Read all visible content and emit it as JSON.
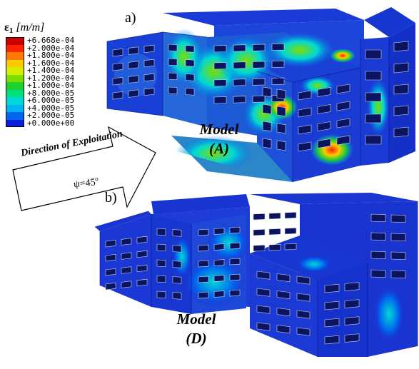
{
  "legend": {
    "symbol": "ε",
    "subscript": "1",
    "unit": "[m/m]",
    "entries": [
      {
        "label": "+6.668e-04",
        "color": "#cc0000"
      },
      {
        "label": "+2.000e-04",
        "color": "#ff2200"
      },
      {
        "label": "+1.800e-04",
        "color": "#ff7a00"
      },
      {
        "label": "+1.600e-04",
        "color": "#ffc800"
      },
      {
        "label": "+1.400e-04",
        "color": "#d8ee00"
      },
      {
        "label": "+1.200e-04",
        "color": "#7dde00"
      },
      {
        "label": "+1.000e-04",
        "color": "#1fd12e"
      },
      {
        "label": "+8.000e-05",
        "color": "#00e07d"
      },
      {
        "label": "+6.000e-05",
        "color": "#00d8d6"
      },
      {
        "label": "+4.000e-05",
        "color": "#00b4f4"
      },
      {
        "label": "+2.000e-05",
        "color": "#0066ee"
      },
      {
        "label": "+0.000e+00",
        "color": "#0a1ee0"
      }
    ]
  },
  "panels": {
    "a_label": "a)",
    "b_label": "b)"
  },
  "models": {
    "a_line1": "Model",
    "a_line2": "(A)",
    "d_line1": "Model",
    "d_line2": "(D)"
  },
  "arrow": {
    "title": "Direction of Exploitation",
    "angle": "ψ=45",
    "angle_unit": "o"
  },
  "colors": {
    "building_base": "#1a2fd0",
    "building_dark": "#0a1590",
    "window": "#0b1460",
    "window_frame": "#cfd6ea"
  }
}
